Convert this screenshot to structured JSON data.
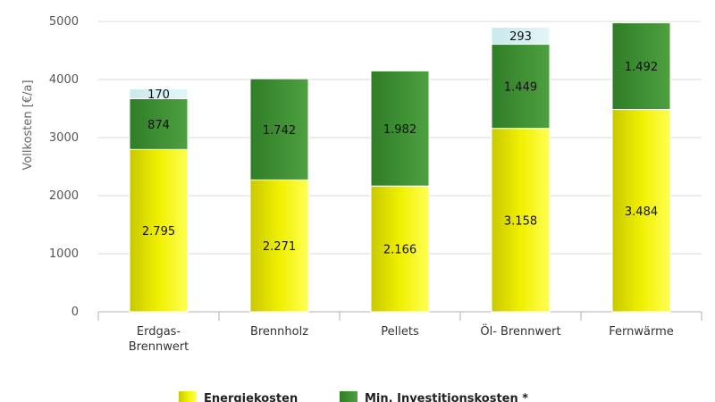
{
  "chart_data": {
    "type": "bar",
    "stacked": true,
    "categories": [
      [
        "Erdgas-",
        "Brennwert"
      ],
      [
        "Brennholz"
      ],
      [
        "Pellets"
      ],
      [
        "Öl- Brennwert"
      ],
      [
        "Fernwärme"
      ]
    ],
    "series": [
      {
        "name": "Energiekosten",
        "values": [
          2795,
          2271,
          2166,
          3158,
          3484
        ],
        "labels": [
          "2.795",
          "2.271",
          "2.166",
          "3.158",
          "3.484"
        ],
        "color": "#e6e600"
      },
      {
        "name": "Min. Investitionskosten *",
        "values": [
          874,
          1742,
          1982,
          1449,
          1492
        ],
        "labels": [
          "874",
          "1.742",
          "1.982",
          "1.449",
          "1.492"
        ],
        "color": "#3a8f2e"
      },
      {
        "name": "",
        "values": [
          170,
          0,
          0,
          293,
          0
        ],
        "labels": [
          "170",
          "",
          "",
          "293",
          ""
        ],
        "color": "#d3eef0"
      }
    ],
    "ylabel": "Vollkosten [€/a]",
    "xlabel": "",
    "ylim": [
      0,
      5000
    ],
    "yticks": [
      0,
      1000,
      2000,
      3000,
      4000,
      5000
    ],
    "grid": true,
    "legend_position": "bottom"
  }
}
